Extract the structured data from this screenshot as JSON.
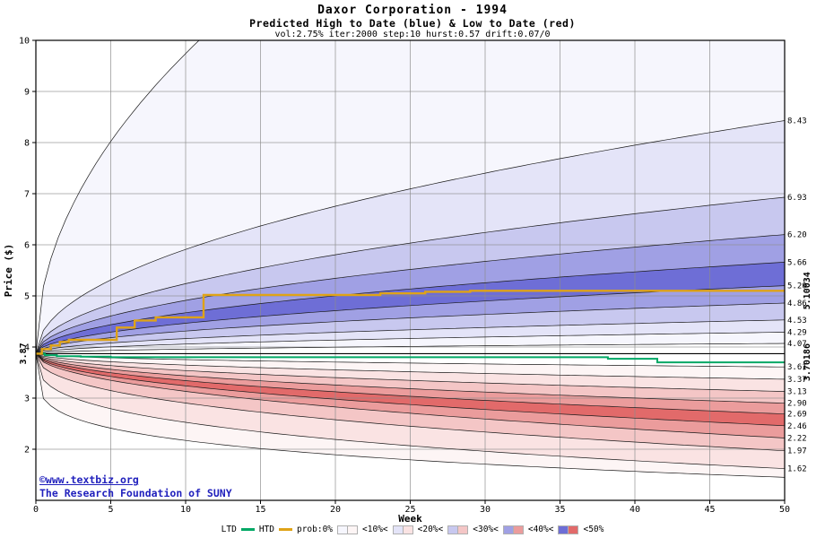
{
  "footer": {
    "copyright": "©www.textbiz.org",
    "org": "The Research Foundation of SUNY"
  },
  "chart_data": {
    "type": "area",
    "title": "Daxor Corporation - 1994",
    "subtitle": "Predicted High to Date (blue) &  Low to Date (red)",
    "params_line": "vol:2.75% iter:2000 step:10 hurst:0.57 drift:0.07/0",
    "xlabel": "Week",
    "ylabel": "Price ($)",
    "xlim": [
      0,
      50
    ],
    "ylim": [
      1,
      10
    ],
    "x_ticks": [
      0,
      5,
      10,
      15,
      20,
      25,
      30,
      35,
      40,
      45,
      50
    ],
    "y_ticks": [
      2,
      3,
      4,
      5,
      6,
      7,
      8,
      9,
      10
    ],
    "start_price": 3.87,
    "start_label": "3.87",
    "reference_price": 3.87,
    "upper_boundaries": [
      {
        "end": 17.0,
        "exp": 0.5,
        "label": ""
      },
      {
        "end": 8.43,
        "exp": 0.5,
        "label": "8.43"
      },
      {
        "end": 6.93,
        "exp": 0.5,
        "label": "6.93"
      },
      {
        "end": 6.2,
        "exp": 0.5,
        "label": "6.20"
      },
      {
        "end": 5.66,
        "exp": 0.5,
        "label": "5.66"
      },
      {
        "end": 5.2,
        "exp": 0.5,
        "label": "5.20"
      },
      {
        "end": 4.86,
        "exp": 0.5,
        "label": "4.86"
      },
      {
        "end": 4.53,
        "exp": 0.5,
        "label": "4.53"
      },
      {
        "end": 4.29,
        "exp": 0.5,
        "label": "4.29"
      },
      {
        "end": 4.07,
        "exp": 0.5,
        "label": "4.07"
      }
    ],
    "lower_boundaries": [
      {
        "end": 1.45,
        "exp": 0.22,
        "label": ""
      },
      {
        "end": 1.62,
        "exp": 0.32,
        "label": "1.62"
      },
      {
        "end": 1.97,
        "exp": 0.42,
        "label": "1.97"
      },
      {
        "end": 2.22,
        "exp": 0.5,
        "label": "2.22"
      },
      {
        "end": 2.46,
        "exp": 0.5,
        "label": "2.46"
      },
      {
        "end": 2.69,
        "exp": 0.5,
        "label": "2.69"
      },
      {
        "end": 2.9,
        "exp": 0.5,
        "label": "2.90"
      },
      {
        "end": 3.13,
        "exp": 0.5,
        "label": "3.13"
      },
      {
        "end": 3.37,
        "exp": 0.5,
        "label": "3.37"
      },
      {
        "end": 3.61,
        "exp": 0.5,
        "label": "3.61"
      }
    ],
    "band_levels_blue": [
      "#f6f6fd",
      "#e4e4f8",
      "#c8c8ef",
      "#a0a0e4",
      "#6e6ed6"
    ],
    "band_levels_red": [
      "#fdf5f5",
      "#fae3e3",
      "#f4c6c6",
      "#eb9c9c",
      "#e26a6a"
    ],
    "htd": {
      "name": "HTD",
      "color": "#dfa317",
      "final_label": "5.10034",
      "steps": [
        [
          0,
          3.87
        ],
        [
          0.4,
          3.96
        ],
        [
          1,
          4.03
        ],
        [
          1.6,
          4.1
        ],
        [
          2.2,
          4.14
        ],
        [
          5.4,
          4.38
        ],
        [
          6.6,
          4.52
        ],
        [
          8,
          4.58
        ],
        [
          11.2,
          5.02
        ],
        [
          23,
          5.05
        ],
        [
          26,
          5.08
        ],
        [
          29,
          5.1
        ],
        [
          50,
          5.1
        ]
      ]
    },
    "ltd": {
      "name": "LTD",
      "color": "#00a865",
      "final_label": "3.70186",
      "steps": [
        [
          0,
          3.87
        ],
        [
          0.6,
          3.84
        ],
        [
          1.4,
          3.82
        ],
        [
          3,
          3.81
        ],
        [
          5,
          3.8
        ],
        [
          38.2,
          3.77
        ],
        [
          41.5,
          3.7
        ],
        [
          50,
          3.7
        ]
      ]
    }
  },
  "legend": {
    "items": [
      {
        "type": "label",
        "text": "LTD"
      },
      {
        "type": "line",
        "color": "#00a865"
      },
      {
        "type": "label",
        "text": "HTD"
      },
      {
        "type": "line",
        "color": "#dfa317"
      },
      {
        "type": "label",
        "text": "prob:0%"
      },
      {
        "type": "pair",
        "blue": "#f6f6fd",
        "red": "#fdf5f5"
      },
      {
        "type": "label",
        "text": "<10%<"
      },
      {
        "type": "pair",
        "blue": "#e4e4f8",
        "red": "#fae3e3"
      },
      {
        "type": "label",
        "text": "<20%<"
      },
      {
        "type": "pair",
        "blue": "#c8c8ef",
        "red": "#f4c6c6"
      },
      {
        "type": "label",
        "text": "<30%<"
      },
      {
        "type": "pair",
        "blue": "#a0a0e4",
        "red": "#eb9c9c"
      },
      {
        "type": "label",
        "text": "<40%<"
      },
      {
        "type": "pair",
        "blue": "#6e6ed6",
        "red": "#e26a6a"
      },
      {
        "type": "label",
        "text": "<50%"
      }
    ]
  }
}
